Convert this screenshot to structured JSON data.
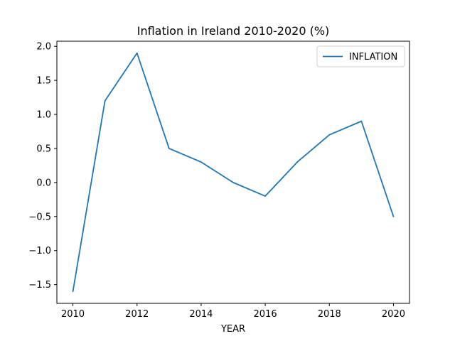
{
  "chart_data": {
    "type": "line",
    "title": "Inflation in Ireland 2010-2020 (%)",
    "xlabel": "YEAR",
    "ylabel": "",
    "x": [
      2010,
      2011,
      2012,
      2013,
      2014,
      2015,
      2016,
      2017,
      2018,
      2019,
      2020
    ],
    "series": [
      {
        "name": "INFLATION",
        "color": "#1f77b4",
        "values": [
          -1.6,
          1.2,
          1.9,
          0.5,
          0.3,
          0.0,
          -0.2,
          0.3,
          0.7,
          0.9,
          -0.5
        ]
      }
    ],
    "xlim": [
      2009.5,
      2020.5
    ],
    "ylim": [
      -1.775,
      2.075
    ],
    "xticks": [
      2010,
      2012,
      2014,
      2016,
      2018,
      2020
    ],
    "xtick_labels": [
      "2010",
      "2012",
      "2014",
      "2016",
      "2018",
      "2020"
    ],
    "yticks": [
      -1.5,
      -1.0,
      -0.5,
      0.0,
      0.5,
      1.0,
      1.5,
      2.0
    ],
    "ytick_labels": [
      "−1.5",
      "−1.0",
      "−0.5",
      "0.0",
      "0.5",
      "1.0",
      "1.5",
      "2.0"
    ],
    "grid": false,
    "legend_position": "upper right"
  }
}
